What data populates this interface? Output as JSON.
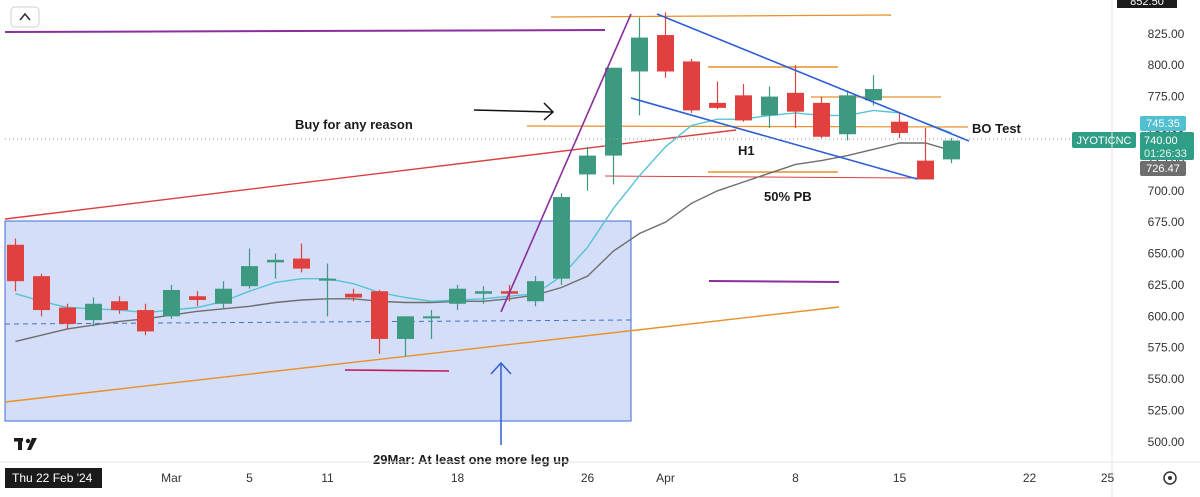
{
  "chart_data": {
    "type": "candlestick",
    "symbol": "JYOTICNC",
    "yaxis": {
      "ticks": [
        500,
        525,
        550,
        575,
        600,
        625,
        650,
        675,
        700,
        725,
        750,
        775,
        800,
        825
      ],
      "tick_labels": [
        "500.00",
        "525.00",
        "550.00",
        "575.00",
        "600.00",
        "625.00",
        "650.00",
        "675.00",
        "700.00",
        "725.00",
        "750.00",
        "775.00",
        "800.00",
        "825.00"
      ],
      "top_partial_label": "852.50",
      "range": [
        482,
        858
      ]
    },
    "xaxis": {
      "tick_labels": [
        {
          "label": "Mar",
          "index": 6
        },
        {
          "label": "5",
          "index": 9
        },
        {
          "label": "11",
          "index": 12
        },
        {
          "label": "18",
          "index": 17
        },
        {
          "label": "26",
          "index": 22
        },
        {
          "label": "Apr",
          "index": 25
        },
        {
          "label": "8",
          "index": 30
        },
        {
          "label": "15",
          "index": 34
        },
        {
          "label": "22",
          "index": 39
        },
        {
          "label": "25",
          "index": 42
        }
      ],
      "crosshair_label": "Thu 22 Feb '24"
    },
    "candles": [
      {
        "o": 657,
        "h": 662,
        "l": 620,
        "c": 628
      },
      {
        "o": 632,
        "h": 634,
        "l": 600,
        "c": 605
      },
      {
        "o": 607,
        "h": 610,
        "l": 590,
        "c": 594
      },
      {
        "o": 597,
        "h": 615,
        "l": 592,
        "c": 610
      },
      {
        "o": 612,
        "h": 616,
        "l": 602,
        "c": 605
      },
      {
        "o": 605,
        "h": 610,
        "l": 585,
        "c": 588
      },
      {
        "o": 600,
        "h": 625,
        "l": 598,
        "c": 621
      },
      {
        "o": 616,
        "h": 620,
        "l": 608,
        "c": 613
      },
      {
        "o": 610,
        "h": 628,
        "l": 606,
        "c": 622
      },
      {
        "o": 624,
        "h": 654,
        "l": 622,
        "c": 640
      },
      {
        "o": 643,
        "h": 650,
        "l": 630,
        "c": 645
      },
      {
        "o": 646,
        "h": 658,
        "l": 635,
        "c": 638
      },
      {
        "o": 630,
        "h": 642,
        "l": 600,
        "c": 630
      },
      {
        "o": 618,
        "h": 622,
        "l": 612,
        "c": 615
      },
      {
        "o": 620,
        "h": 621,
        "l": 570,
        "c": 582
      },
      {
        "o": 582,
        "h": 600,
        "l": 568,
        "c": 600
      },
      {
        "o": 600,
        "h": 605,
        "l": 582,
        "c": 600
      },
      {
        "o": 610,
        "h": 625,
        "l": 605,
        "c": 622
      },
      {
        "o": 618,
        "h": 624,
        "l": 610,
        "c": 620
      },
      {
        "o": 620,
        "h": 625,
        "l": 612,
        "c": 618
      },
      {
        "o": 612,
        "h": 632,
        "l": 608,
        "c": 628
      },
      {
        "o": 630,
        "h": 698,
        "l": 625,
        "c": 695
      },
      {
        "o": 713,
        "h": 735,
        "l": 700,
        "c": 728
      },
      {
        "o": 728,
        "h": 795,
        "l": 705,
        "c": 798
      },
      {
        "o": 795,
        "h": 838,
        "l": 760,
        "c": 822
      },
      {
        "o": 824,
        "h": 842,
        "l": 790,
        "c": 795
      },
      {
        "o": 803,
        "h": 805,
        "l": 762,
        "c": 764
      },
      {
        "o": 770,
        "h": 787,
        "l": 765,
        "c": 766
      },
      {
        "o": 776,
        "h": 785,
        "l": 755,
        "c": 756
      },
      {
        "o": 760,
        "h": 783,
        "l": 750,
        "c": 775
      },
      {
        "o": 778,
        "h": 800,
        "l": 750,
        "c": 763
      },
      {
        "o": 770,
        "h": 775,
        "l": 742,
        "c": 743
      },
      {
        "o": 745,
        "h": 780,
        "l": 740,
        "c": 776
      },
      {
        "o": 772,
        "h": 792,
        "l": 768,
        "c": 781
      },
      {
        "o": 755,
        "h": 762,
        "l": 742,
        "c": 746
      },
      {
        "o": 724,
        "h": 750,
        "l": 710,
        "c": 709
      },
      {
        "o": 725,
        "h": 742,
        "l": 722,
        "c": 740
      }
    ],
    "ema_fast": [
      618,
      612,
      607,
      606,
      605,
      603,
      605,
      607,
      612,
      620,
      627,
      630,
      630,
      626,
      619,
      615,
      612,
      613,
      614,
      616,
      618,
      632,
      655,
      686,
      712,
      735,
      752,
      757,
      757,
      760,
      762,
      760,
      760,
      764,
      762,
      754,
      746
    ],
    "ma_slow": [
      580,
      585,
      590,
      593,
      596,
      598,
      601,
      604,
      606,
      608,
      611,
      613,
      614,
      614,
      612,
      611,
      611,
      612,
      612,
      614,
      617,
      623,
      632,
      652,
      666,
      675,
      690,
      700,
      707,
      714,
      721,
      724,
      728,
      733,
      738,
      738,
      732
    ],
    "price_labels": [
      {
        "value": "745.35",
        "color": "#4fbfd1"
      },
      {
        "value": "740.00",
        "symbol_label": "JYOTICNC",
        "countdown": "01:26:33",
        "color": "#2f9e86"
      },
      {
        "value": "726.47",
        "color": "#6e6e6e"
      }
    ],
    "annotations": [
      {
        "text": "Buy for any reason"
      },
      {
        "text": "H1"
      },
      {
        "text": "50% PB"
      },
      {
        "text": "BO Test"
      },
      {
        "text": "29Mar: At least one more leg up"
      }
    ]
  },
  "ui": {
    "collapse_icon": "chevron-up-icon",
    "settings_icon": "gear-icon",
    "logo_text": "TV"
  },
  "colors": {
    "bull": "#3d9a80",
    "bear": "#e0403e",
    "ema_fast": "#56c3d5",
    "ma_slow": "#6e6e6e",
    "box_fill": "#cdd8f7",
    "box_stroke": "#3b6fd8",
    "purple": "#8b2f9e",
    "red_line": "#d9403f",
    "orange_line": "#e8902a",
    "blue_line": "#2f5fd6"
  }
}
